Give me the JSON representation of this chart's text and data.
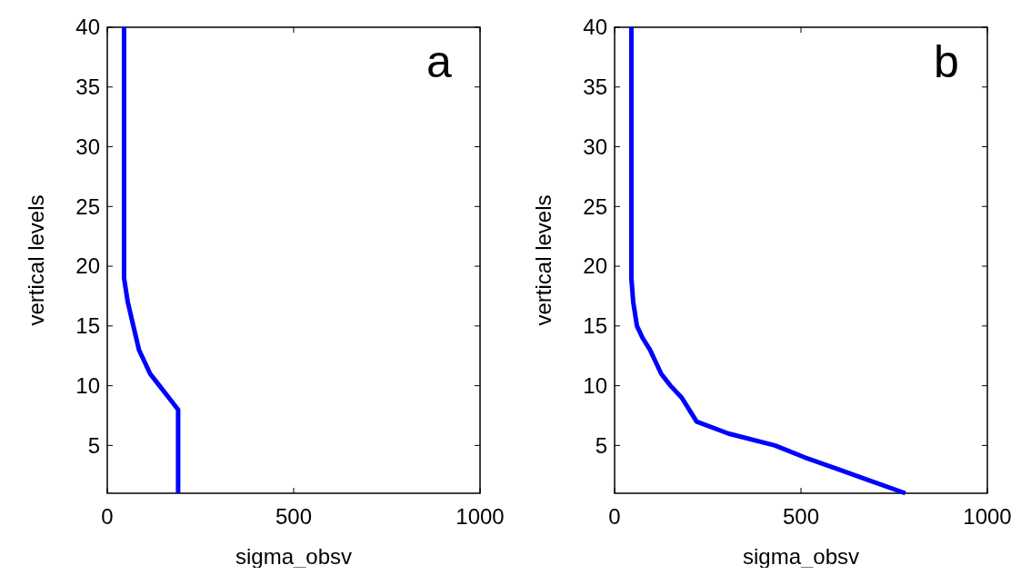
{
  "chart_data": [
    {
      "type": "line",
      "annotations": [
        "a"
      ],
      "xlabel": "sigma_obsv",
      "ylabel": "vertical levels",
      "xlim": [
        0,
        1000
      ],
      "ylim": [
        1,
        40
      ],
      "xticks": [
        0,
        500,
        1000
      ],
      "yticks": [
        5,
        10,
        15,
        20,
        25,
        30,
        35,
        40
      ],
      "grid": false,
      "marker": "none",
      "line_style": "solid",
      "series": [
        {
          "color": "#0000ff",
          "x": [
            45,
            45,
            55,
            70,
            85,
            100,
            115,
            140,
            165,
            190,
            190
          ],
          "values": [
            40,
            19,
            17,
            15,
            13,
            12,
            11,
            10,
            9,
            8,
            1
          ]
        }
      ]
    },
    {
      "type": "line",
      "annotations": [
        "b"
      ],
      "xlabel": "sigma_obsv",
      "ylabel": "vertical levels",
      "xlim": [
        0,
        1000
      ],
      "ylim": [
        1,
        40
      ],
      "xticks": [
        0,
        500,
        1000
      ],
      "yticks": [
        5,
        10,
        15,
        20,
        25,
        30,
        35,
        40
      ],
      "grid": false,
      "marker": "none",
      "line_style": "solid",
      "series": [
        {
          "color": "#0000ff",
          "x": [
            45,
            45,
            50,
            60,
            75,
            95,
            110,
            125,
            150,
            180,
            200,
            220,
            305,
            430,
            510,
            600,
            690,
            780
          ],
          "values": [
            40,
            19,
            17,
            15,
            14,
            13,
            12,
            11,
            10,
            9,
            8,
            7,
            6,
            5,
            4,
            3,
            2,
            1
          ]
        }
      ]
    }
  ]
}
